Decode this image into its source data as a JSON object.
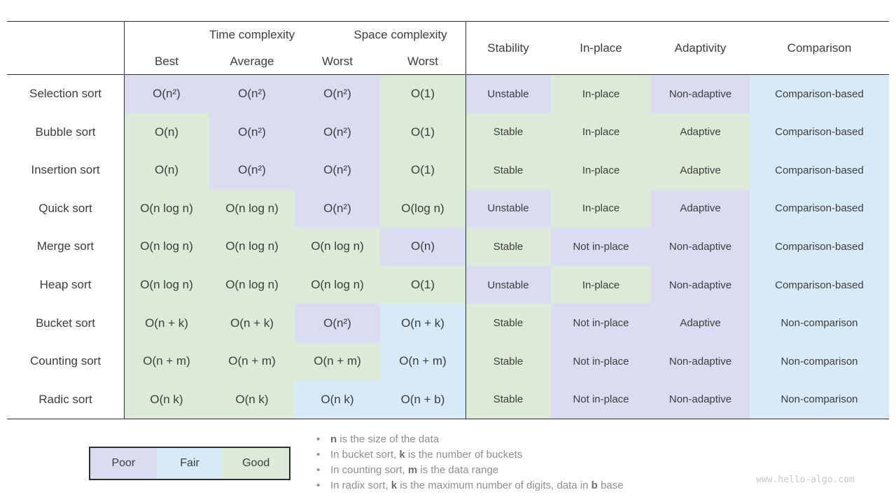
{
  "colors": {
    "poor": "#dadcf1",
    "fair": "#d7eaf8",
    "good": "#dcead8",
    "line": "#2e2e2e",
    "text": "#3d3d3d",
    "note_text": "#8f8f8f",
    "watermark": "#c8c8c8"
  },
  "chart_data": {
    "type": "table",
    "column_groups": [
      {
        "label": "Time complexity",
        "span": 3
      },
      {
        "label": "Space complexity",
        "span": 1
      }
    ],
    "sub_columns": [
      "Best",
      "Average",
      "Worst",
      "Worst"
    ],
    "attribute_columns": [
      "Stability",
      "In-place",
      "Adaptivity",
      "Comparison"
    ],
    "legend": [
      {
        "label": "Poor",
        "rating": "poor"
      },
      {
        "label": "Fair",
        "rating": "fair"
      },
      {
        "label": "Good",
        "rating": "good"
      }
    ],
    "rows": [
      {
        "label": "Selection sort",
        "cells": [
          {
            "text": "O(n²)",
            "rating": "poor"
          },
          {
            "text": "O(n²)",
            "rating": "poor"
          },
          {
            "text": "O(n²)",
            "rating": "poor"
          },
          {
            "text": "O(1)",
            "rating": "good"
          },
          {
            "text": "Unstable",
            "rating": "poor"
          },
          {
            "text": "In-place",
            "rating": "good"
          },
          {
            "text": "Non-adaptive",
            "rating": "poor"
          },
          {
            "text": "Comparison-based",
            "rating": "fair"
          }
        ]
      },
      {
        "label": "Bubble sort",
        "cells": [
          {
            "text": "O(n)",
            "rating": "good"
          },
          {
            "text": "O(n²)",
            "rating": "poor"
          },
          {
            "text": "O(n²)",
            "rating": "poor"
          },
          {
            "text": "O(1)",
            "rating": "good"
          },
          {
            "text": "Stable",
            "rating": "good"
          },
          {
            "text": "In-place",
            "rating": "good"
          },
          {
            "text": "Adaptive",
            "rating": "good"
          },
          {
            "text": "Comparison-based",
            "rating": "fair"
          }
        ]
      },
      {
        "label": "Insertion sort",
        "cells": [
          {
            "text": "O(n)",
            "rating": "good"
          },
          {
            "text": "O(n²)",
            "rating": "poor"
          },
          {
            "text": "O(n²)",
            "rating": "poor"
          },
          {
            "text": "O(1)",
            "rating": "good"
          },
          {
            "text": "Stable",
            "rating": "good"
          },
          {
            "text": "In-place",
            "rating": "good"
          },
          {
            "text": "Adaptive",
            "rating": "good"
          },
          {
            "text": "Comparison-based",
            "rating": "fair"
          }
        ]
      },
      {
        "label": "Quick sort",
        "cells": [
          {
            "text": "O(n log n)",
            "rating": "good"
          },
          {
            "text": "O(n log n)",
            "rating": "good"
          },
          {
            "text": "O(n²)",
            "rating": "poor"
          },
          {
            "text": "O(log n)",
            "rating": "good"
          },
          {
            "text": "Unstable",
            "rating": "poor"
          },
          {
            "text": "In-place",
            "rating": "good"
          },
          {
            "text": "Adaptive",
            "rating": "poor"
          },
          {
            "text": "Comparison-based",
            "rating": "fair"
          }
        ]
      },
      {
        "label": "Merge sort",
        "cells": [
          {
            "text": "O(n log n)",
            "rating": "good"
          },
          {
            "text": "O(n log n)",
            "rating": "good"
          },
          {
            "text": "O(n log n)",
            "rating": "good"
          },
          {
            "text": "O(n)",
            "rating": "poor"
          },
          {
            "text": "Stable",
            "rating": "good"
          },
          {
            "text": "Not in-place",
            "rating": "poor"
          },
          {
            "text": "Non-adaptive",
            "rating": "poor"
          },
          {
            "text": "Comparison-based",
            "rating": "fair"
          }
        ]
      },
      {
        "label": "Heap sort",
        "cells": [
          {
            "text": "O(n log n)",
            "rating": "good"
          },
          {
            "text": "O(n log n)",
            "rating": "good"
          },
          {
            "text": "O(n log n)",
            "rating": "good"
          },
          {
            "text": "O(1)",
            "rating": "good"
          },
          {
            "text": "Unstable",
            "rating": "poor"
          },
          {
            "text": "In-place",
            "rating": "good"
          },
          {
            "text": "Non-adaptive",
            "rating": "poor"
          },
          {
            "text": "Comparison-based",
            "rating": "fair"
          }
        ]
      },
      {
        "label": "Bucket sort",
        "cells": [
          {
            "text": "O(n + k)",
            "rating": "good"
          },
          {
            "text": "O(n + k)",
            "rating": "good"
          },
          {
            "text": "O(n²)",
            "rating": "poor"
          },
          {
            "text": "O(n + k)",
            "rating": "fair"
          },
          {
            "text": "Stable",
            "rating": "good"
          },
          {
            "text": "Not in-place",
            "rating": "poor"
          },
          {
            "text": "Adaptive",
            "rating": "poor"
          },
          {
            "text": "Non-comparison",
            "rating": "fair"
          }
        ]
      },
      {
        "label": "Counting sort",
        "cells": [
          {
            "text": "O(n + m)",
            "rating": "good"
          },
          {
            "text": "O(n + m)",
            "rating": "good"
          },
          {
            "text": "O(n + m)",
            "rating": "good"
          },
          {
            "text": "O(n + m)",
            "rating": "fair"
          },
          {
            "text": "Stable",
            "rating": "good"
          },
          {
            "text": "Not in-place",
            "rating": "poor"
          },
          {
            "text": "Non-adaptive",
            "rating": "poor"
          },
          {
            "text": "Non-comparison",
            "rating": "fair"
          }
        ]
      },
      {
        "label": "Radic sort",
        "cells": [
          {
            "text": "O(n k)",
            "rating": "good"
          },
          {
            "text": "O(n k)",
            "rating": "good"
          },
          {
            "text": "O(n k)",
            "rating": "fair"
          },
          {
            "text": "O(n + b)",
            "rating": "fair"
          },
          {
            "text": "Stable",
            "rating": "good"
          },
          {
            "text": "Not in-place",
            "rating": "poor"
          },
          {
            "text": "Non-adaptive",
            "rating": "poor"
          },
          {
            "text": "Non-comparison",
            "rating": "fair"
          }
        ]
      }
    ]
  },
  "notes": [
    [
      {
        "t": "n",
        "b": true
      },
      {
        "t": " is the size of the data",
        "b": false
      }
    ],
    [
      {
        "t": "In bucket sort, ",
        "b": false
      },
      {
        "t": "k",
        "b": true
      },
      {
        "t": " is the number of buckets",
        "b": false
      }
    ],
    [
      {
        "t": "In counting sort, ",
        "b": false
      },
      {
        "t": "m",
        "b": true
      },
      {
        "t": " is the data range",
        "b": false
      }
    ],
    [
      {
        "t": "In radix sort, ",
        "b": false
      },
      {
        "t": "k",
        "b": true
      },
      {
        "t": " is the maximum number of digits, data in ",
        "b": false
      },
      {
        "t": "b",
        "b": true
      },
      {
        "t": " base",
        "b": false
      }
    ]
  ],
  "watermark": "www.hello-algo.com"
}
